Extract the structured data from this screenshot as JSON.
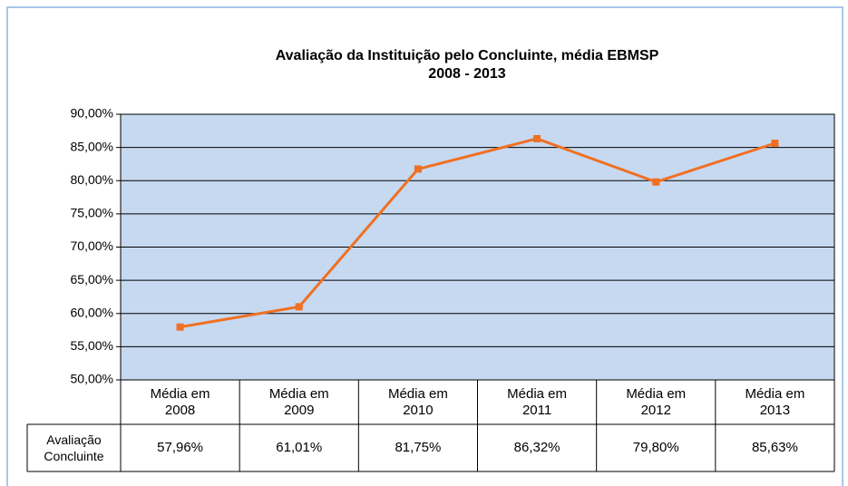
{
  "chart_data": {
    "type": "line",
    "title": "Avaliação da Instituição pelo Concluinte, média EBMSP",
    "subtitle": "2008 - 2013",
    "categories": [
      "Média em 2008",
      "Média em 2009",
      "Média em 2010",
      "Média em 2011",
      "Média em 2012",
      "Média em 2013"
    ],
    "series": [
      {
        "name": "Avaliação Concluinte",
        "color": "#f07022",
        "values": [
          57.96,
          61.01,
          81.75,
          86.32,
          79.8,
          85.63
        ],
        "value_labels": [
          "57,96%",
          "61,01%",
          "81,75%",
          "86,32%",
          "79,80%",
          "85,63%"
        ]
      }
    ],
    "ylim": [
      50,
      90
    ],
    "yticks": [
      {
        "value": 50,
        "label": "50,00%"
      },
      {
        "value": 55,
        "label": "55,00%"
      },
      {
        "value": 60,
        "label": "60,00%"
      },
      {
        "value": 65,
        "label": "65,00%"
      },
      {
        "value": 70,
        "label": "70,00%"
      },
      {
        "value": 75,
        "label": "75,00%"
      },
      {
        "value": 80,
        "label": "80,00%"
      },
      {
        "value": 85,
        "label": "85,00%"
      },
      {
        "value": 90,
        "label": "90,00%"
      }
    ],
    "grid": true,
    "plot_background": "#c6d9f1"
  }
}
